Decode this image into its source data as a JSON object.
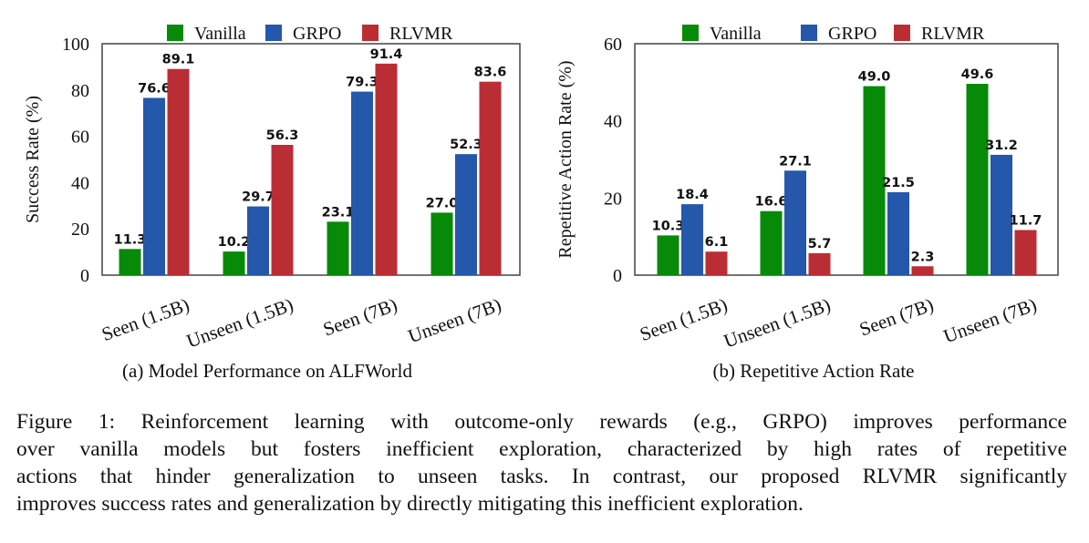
{
  "colors": {
    "Vanilla": "#078a07",
    "GRPO": "#2557aa",
    "RLVMR": "#bb2d35"
  },
  "chart_data": [
    {
      "type": "bar",
      "title": "(a) Model Performance on ALFWorld",
      "xlabel": "",
      "ylabel": "Success Rate (%)",
      "ylim": [
        0,
        100
      ],
      "yticks": [
        0,
        20,
        40,
        60,
        80,
        100
      ],
      "categories": [
        "Seen (1.5B)",
        "Unseen (1.5B)",
        "Seen (7B)",
        "Unseen (7B)"
      ],
      "legend": "top",
      "series": [
        {
          "name": "Vanilla",
          "values": [
            11.3,
            10.2,
            23.1,
            27.0
          ]
        },
        {
          "name": "GRPO",
          "values": [
            76.6,
            29.7,
            79.3,
            52.3
          ]
        },
        {
          "name": "RLVMR",
          "values": [
            89.1,
            56.3,
            91.4,
            83.6
          ]
        }
      ]
    },
    {
      "type": "bar",
      "title": "(b) Repetitive Action Rate",
      "xlabel": "",
      "ylabel": "Repetitive Action Rate (%)",
      "ylim": [
        0,
        60
      ],
      "yticks": [
        0,
        20,
        40,
        60
      ],
      "categories": [
        "Seen (1.5B)",
        "Unseen (1.5B)",
        "Seen (7B)",
        "Unseen (7B)"
      ],
      "legend": "top",
      "series": [
        {
          "name": "Vanilla",
          "values": [
            10.3,
            16.6,
            49.0,
            49.6
          ]
        },
        {
          "name": "GRPO",
          "values": [
            18.4,
            27.1,
            21.5,
            31.2
          ]
        },
        {
          "name": "RLVMR",
          "values": [
            6.1,
            5.7,
            2.3,
            11.7
          ]
        }
      ]
    }
  ],
  "caption": [
    "Figure 1: Reinforcement learning with outcome-only rewards (e.g., GRPO) improves performance",
    "over vanilla models but fosters inefficient exploration, characterized by high rates of repetitive",
    "actions that hinder generalization to unseen tasks. In contrast, our proposed RLVMR significantly",
    "improves success rates and generalization by directly mitigating this inefficient exploration."
  ]
}
